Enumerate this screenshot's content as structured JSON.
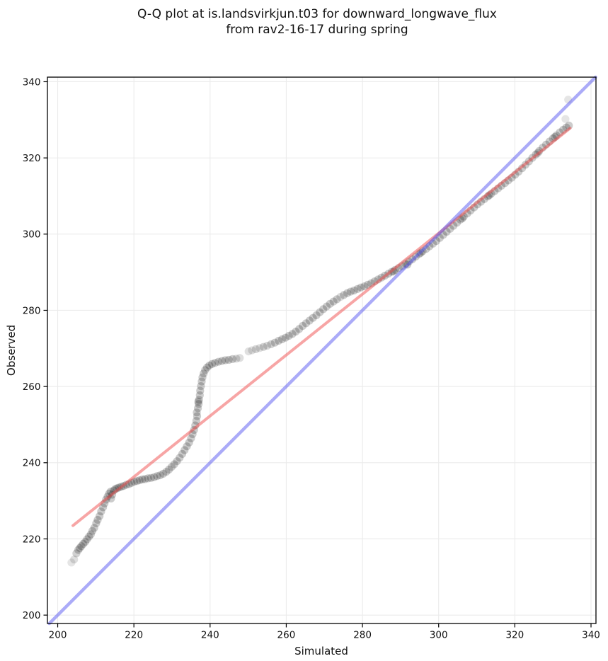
{
  "title": {
    "line1": "Q-Q plot at is.landsvirkjun.t03 for downward_longwave_flux",
    "line2": "from rav2-16-17 during spring"
  },
  "chart_data": {
    "type": "scatter",
    "title": "Q-Q plot at is.landsvirkjun.t03 for downward_longwave_flux\nfrom rav2-16-17 during spring",
    "xlabel": "Simulated",
    "ylabel": "Observed",
    "xlim": [
      197.3,
      341.3
    ],
    "ylim": [
      197.8,
      341.2
    ],
    "xticks": [
      200,
      220,
      240,
      260,
      280,
      300,
      320,
      340
    ],
    "yticks": [
      200,
      220,
      240,
      260,
      280,
      300,
      320,
      340
    ],
    "grid": true,
    "grid_color": "#ebebeb",
    "axes_color": "#000000",
    "legend": "none",
    "identity_line": {
      "name": "identity y=x",
      "color": "#5050f0",
      "alpha": 0.48,
      "width": 4.5,
      "points": [
        [
          197.8,
          197.8
        ],
        [
          341.2,
          341.2
        ]
      ]
    },
    "regression_line": {
      "name": "fit",
      "color": "#f04c4c",
      "alpha": 0.5,
      "width": 4,
      "points": [
        [
          204.0,
          223.5
        ],
        [
          334.5,
          327.8
        ]
      ]
    },
    "marker": {
      "radius": 5.6,
      "color": "#000000",
      "alpha": 0.2
    },
    "points": [
      [
        203.6,
        213.8,
        0.1
      ],
      [
        204.3,
        214.6,
        0.13
      ],
      [
        204.9,
        216.2,
        0.18
      ],
      [
        205.4,
        217.1
      ],
      [
        205.8,
        217.6
      ],
      [
        206.2,
        218.1
      ],
      [
        206.7,
        218.7
      ],
      [
        207.2,
        219.2
      ],
      [
        207.7,
        219.9
      ],
      [
        208.2,
        220.6
      ],
      [
        208.7,
        221.2
      ],
      [
        209.1,
        222.1
      ],
      [
        209.6,
        222.9
      ],
      [
        210.1,
        224.1
      ],
      [
        210.5,
        225.0
      ],
      [
        211.0,
        226.0
      ],
      [
        211.4,
        227.2
      ],
      [
        211.9,
        228.3
      ],
      [
        212.3,
        229.3
      ],
      [
        212.7,
        230.3
      ],
      [
        213.1,
        231.1
      ],
      [
        213.5,
        231.9
      ],
      [
        213.9,
        232.4
      ],
      [
        214.3,
        231.6
      ],
      [
        214.7,
        232.7
      ],
      [
        215.1,
        233.1
      ],
      [
        214.0,
        230.6
      ],
      [
        215.6,
        233.3
      ],
      [
        216.1,
        233.5
      ],
      [
        216.7,
        233.7
      ],
      [
        217.3,
        233.9
      ],
      [
        218.0,
        234.2
      ],
      [
        218.7,
        234.4
      ],
      [
        219.4,
        234.7
      ],
      [
        220.1,
        235.0
      ],
      [
        220.8,
        235.2
      ],
      [
        221.5,
        235.4
      ],
      [
        222.2,
        235.6
      ],
      [
        222.9,
        235.7
      ],
      [
        223.7,
        235.9
      ],
      [
        224.5,
        236.0
      ],
      [
        225.3,
        236.2
      ],
      [
        226.1,
        236.5
      ],
      [
        226.9,
        236.7
      ],
      [
        227.7,
        237.1
      ],
      [
        228.5,
        237.6
      ],
      [
        229.2,
        238.2
      ],
      [
        229.9,
        238.9
      ],
      [
        230.6,
        239.6
      ],
      [
        231.3,
        240.4
      ],
      [
        232.0,
        241.3
      ],
      [
        232.7,
        242.3
      ],
      [
        233.3,
        243.3
      ],
      [
        233.9,
        244.3
      ],
      [
        234.5,
        245.3
      ],
      [
        235.0,
        246.4
      ],
      [
        235.4,
        247.5
      ],
      [
        235.8,
        248.6
      ],
      [
        236.1,
        249.8
      ],
      [
        236.4,
        251.0
      ],
      [
        236.6,
        252.2
      ],
      [
        236.5,
        253.2
      ],
      [
        236.8,
        254.3
      ],
      [
        237.0,
        255.4
      ],
      [
        237.1,
        256.5
      ],
      [
        236.9,
        256.0
      ],
      [
        237.3,
        257.7
      ],
      [
        237.4,
        258.9
      ],
      [
        237.6,
        260.1
      ],
      [
        237.8,
        261.3
      ],
      [
        238.0,
        262.4
      ],
      [
        238.3,
        263.4
      ],
      [
        238.7,
        264.3
      ],
      [
        239.2,
        265.0
      ],
      [
        239.8,
        265.5
      ],
      [
        240.5,
        265.9
      ],
      [
        241.3,
        266.2
      ],
      [
        242.2,
        266.5
      ],
      [
        243.1,
        266.7
      ],
      [
        244.0,
        266.9
      ],
      [
        244.9,
        267.0
      ],
      [
        245.9,
        267.2
      ],
      [
        246.9,
        267.3,
        0.15
      ],
      [
        247.8,
        267.5,
        0.13
      ],
      [
        250.1,
        269.2,
        0.12
      ],
      [
        251.0,
        269.5,
        0.12
      ],
      [
        252.0,
        269.8,
        0.16
      ],
      [
        253.0,
        270.1,
        0.13
      ],
      [
        254.0,
        270.4,
        0.18
      ],
      [
        255.0,
        270.7,
        0.15
      ],
      [
        256.0,
        271.1,
        0.18
      ],
      [
        257.0,
        271.5,
        0.2
      ],
      [
        258.0,
        272.0
      ],
      [
        258.9,
        272.4
      ],
      [
        259.8,
        272.8
      ],
      [
        260.7,
        273.3
      ],
      [
        261.6,
        273.8
      ],
      [
        262.5,
        274.4
      ],
      [
        263.4,
        275.1
      ],
      [
        264.3,
        275.9
      ],
      [
        265.2,
        276.6
      ],
      [
        266.1,
        277.3
      ],
      [
        267.0,
        278.0
      ],
      [
        267.9,
        278.7
      ],
      [
        268.8,
        279.5
      ],
      [
        269.7,
        280.3
      ],
      [
        270.6,
        281.0
      ],
      [
        271.5,
        281.7
      ],
      [
        272.4,
        282.3
      ],
      [
        273.3,
        282.9
      ],
      [
        274.2,
        283.5,
        0.14
      ],
      [
        275.1,
        284.0
      ],
      [
        276.0,
        284.5
      ],
      [
        276.9,
        284.9
      ],
      [
        277.8,
        285.2
      ],
      [
        278.7,
        285.6
      ],
      [
        279.6,
        286.0
      ],
      [
        280.5,
        286.3
      ],
      [
        281.4,
        286.7
      ],
      [
        282.3,
        287.1
      ],
      [
        283.2,
        287.6
      ],
      [
        284.1,
        288.1
      ],
      [
        285.0,
        288.6
      ],
      [
        285.9,
        289.1
      ],
      [
        286.8,
        289.6
      ],
      [
        287.7,
        290.1
      ],
      [
        288.6,
        290.6
      ],
      [
        289.5,
        291.1
      ],
      [
        290.4,
        291.6
      ],
      [
        291.3,
        292.2
      ],
      [
        292.2,
        292.8
      ],
      [
        293.1,
        293.4
      ],
      [
        294.0,
        294.1
      ],
      [
        294.9,
        294.8
      ],
      [
        295.8,
        295.5
      ],
      [
        296.7,
        296.1
      ],
      [
        297.6,
        296.8
      ],
      [
        298.5,
        297.5
      ],
      [
        299.4,
        298.2
      ],
      [
        288.2,
        290.2
      ],
      [
        291.8,
        292.0
      ],
      [
        295.3,
        295.1
      ],
      [
        300.3,
        299.0
      ],
      [
        301.2,
        299.8
      ],
      [
        302.1,
        300.6
      ],
      [
        303.0,
        301.4
      ],
      [
        303.9,
        302.2
      ],
      [
        304.8,
        303.0
      ],
      [
        305.7,
        303.8
      ],
      [
        306.6,
        304.6
      ],
      [
        307.5,
        305.4
      ],
      [
        308.4,
        306.2
      ],
      [
        309.3,
        307.0
      ],
      [
        310.2,
        307.8
      ],
      [
        311.1,
        308.5
      ],
      [
        312.0,
        309.2
      ],
      [
        312.9,
        309.9
      ],
      [
        313.8,
        310.6
      ],
      [
        314.7,
        311.3
      ],
      [
        315.6,
        312.0
      ],
      [
        316.5,
        312.7
      ],
      [
        317.4,
        313.4
      ],
      [
        318.3,
        314.1
      ],
      [
        319.2,
        314.8
      ],
      [
        320.1,
        315.6
      ],
      [
        306.2,
        304.1
      ],
      [
        313.3,
        310.2
      ],
      [
        321.0,
        316.4
      ],
      [
        321.9,
        317.3
      ],
      [
        322.8,
        318.2
      ],
      [
        323.7,
        319.1
      ],
      [
        324.6,
        320.0
      ],
      [
        325.5,
        320.9
      ],
      [
        326.4,
        321.8
      ],
      [
        327.3,
        322.7
      ],
      [
        328.2,
        323.5
      ],
      [
        329.1,
        324.3
      ],
      [
        330.0,
        325.1
      ],
      [
        330.9,
        325.9
      ],
      [
        331.8,
        326.7
      ],
      [
        332.7,
        327.4
      ],
      [
        333.5,
        328.0
      ],
      [
        334.2,
        328.5
      ],
      [
        326.0,
        321.3
      ],
      [
        330.5,
        325.5
      ],
      [
        333.3,
        330.2,
        0.1
      ],
      [
        334.0,
        335.3,
        0.1
      ]
    ]
  }
}
